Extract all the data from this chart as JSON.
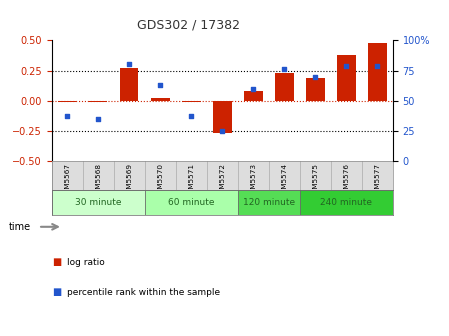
{
  "title": "GDS302 / 17382",
  "samples": [
    "GSM5567",
    "GSM5568",
    "GSM5569",
    "GSM5570",
    "GSM5571",
    "GSM5572",
    "GSM5573",
    "GSM5574",
    "GSM5575",
    "GSM5576",
    "GSM5577"
  ],
  "log_ratios": [
    -0.01,
    -0.01,
    0.27,
    0.02,
    -0.01,
    -0.27,
    0.08,
    0.23,
    0.19,
    0.38,
    0.48
  ],
  "percentile_ranks": [
    37,
    35,
    80,
    63,
    37,
    25,
    60,
    76,
    70,
    79,
    79
  ],
  "bar_color": "#cc2200",
  "dot_color": "#2255cc",
  "bg_color": "#ffffff",
  "plot_bg": "#ffffff",
  "ylim_left": [
    -0.5,
    0.5
  ],
  "ylim_right": [
    0,
    100
  ],
  "yticks_left": [
    -0.5,
    -0.25,
    0.0,
    0.25,
    0.5
  ],
  "yticks_right": [
    0,
    25,
    50,
    75,
    100
  ],
  "hlines": [
    0.25,
    -0.25
  ],
  "zero_line_color": "#cc2200",
  "hline_color": "#000000",
  "groups": [
    {
      "label": "30 minute",
      "start": 0,
      "end": 2,
      "color": "#ccffcc"
    },
    {
      "label": "60 minute",
      "start": 3,
      "end": 5,
      "color": "#aaffaa"
    },
    {
      "label": "120 minute",
      "start": 6,
      "end": 7,
      "color": "#55dd55"
    },
    {
      "label": "240 minute",
      "start": 8,
      "end": 10,
      "color": "#33cc33"
    }
  ],
  "sample_bg": "#dddddd",
  "time_label": "time",
  "legend_log": "log ratio",
  "legend_pct": "percentile rank within the sample",
  "bar_width": 0.6
}
